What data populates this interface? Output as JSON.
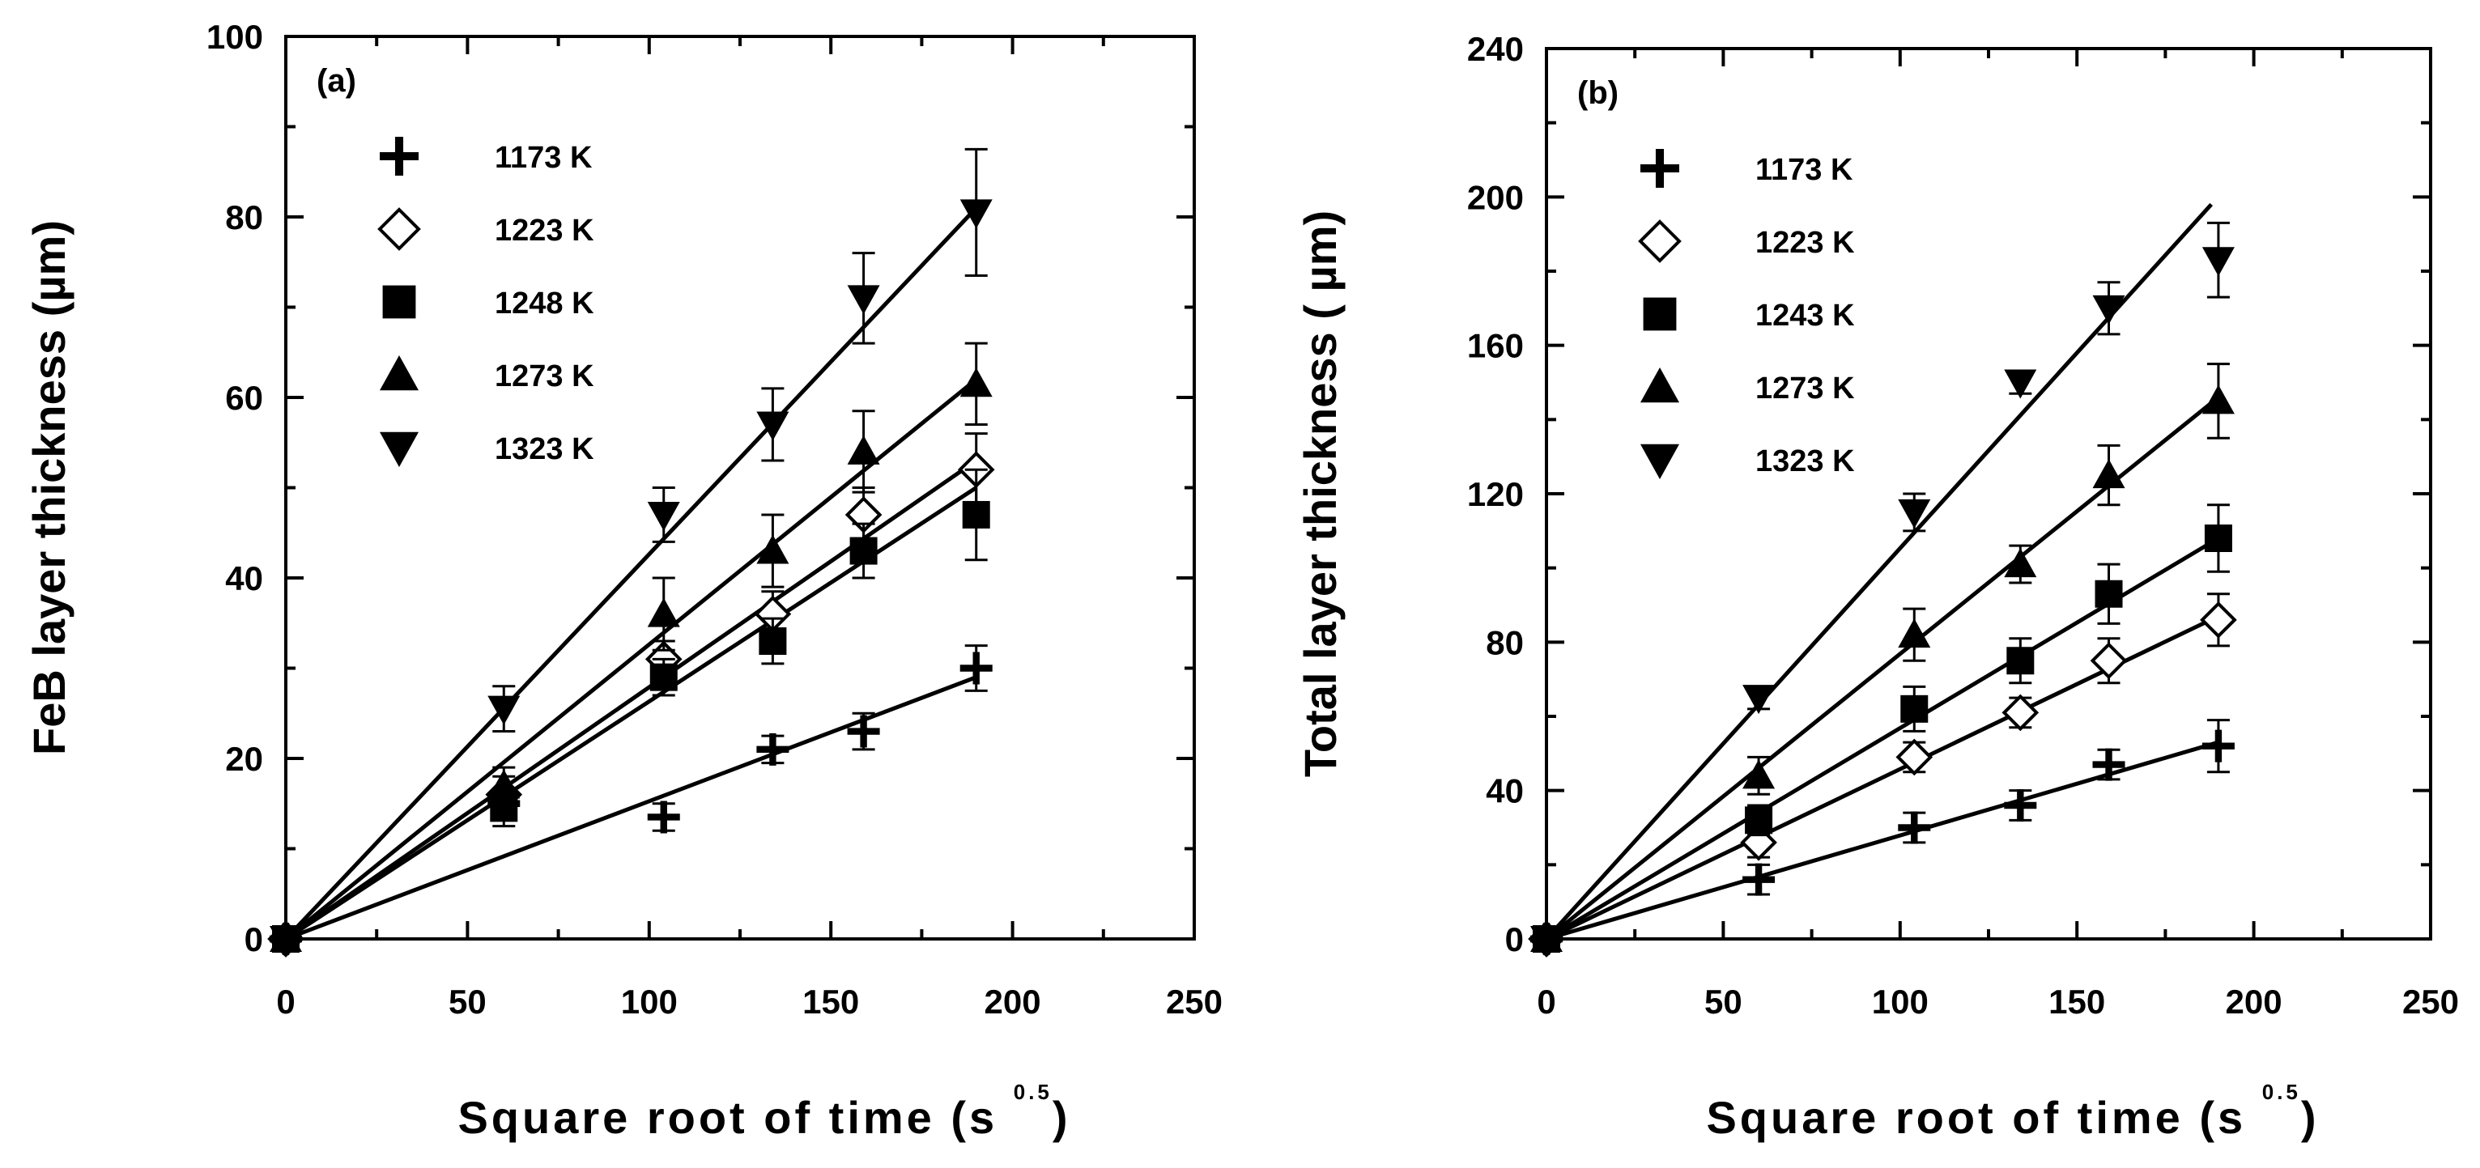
{
  "chart_data": [
    {
      "type": "scatter",
      "panel_label": "(a)",
      "title": "",
      "xlabel": "Square root of time (s",
      "xlabel_sup": "0.5",
      "xlabel_close": ")",
      "ylabel": "FeB layer thickness (µm)",
      "xlim": [
        0,
        250
      ],
      "ylim": [
        0,
        100
      ],
      "xticks": [
        0,
        50,
        100,
        150,
        200,
        250
      ],
      "yticks": [
        0,
        20,
        40,
        60,
        80,
        100
      ],
      "legend_position": "top-left",
      "series": [
        {
          "name": "1173 K",
          "marker": "plus",
          "x": [
            0,
            60,
            104,
            134,
            159,
            190
          ],
          "y": [
            0,
            15,
            13.5,
            21,
            23,
            30
          ],
          "err": [
            0,
            1.5,
            1.5,
            1.5,
            2,
            2.5
          ],
          "fit_end": [
            190,
            29
          ]
        },
        {
          "name": "1223 K",
          "marker": "diamond-open",
          "x": [
            0,
            60,
            104,
            134,
            159,
            190
          ],
          "y": [
            0,
            16,
            31,
            36,
            47,
            52
          ],
          "err": [
            0,
            2,
            2,
            2.5,
            3,
            4
          ],
          "fit_end": [
            190,
            53
          ]
        },
        {
          "name": "1248 K",
          "marker": "square",
          "x": [
            0,
            60,
            104,
            134,
            159,
            190
          ],
          "y": [
            0,
            14.5,
            29,
            33,
            43,
            47
          ],
          "err": [
            0,
            2,
            2,
            2.5,
            3,
            5
          ],
          "fit_end": [
            190,
            50
          ]
        },
        {
          "name": "1273 K",
          "marker": "triangle-up",
          "x": [
            0,
            60,
            104,
            134,
            159,
            190
          ],
          "y": [
            0,
            17,
            36,
            43,
            54,
            61.5
          ],
          "err": [
            0,
            2,
            4,
            4,
            4.5,
            4.5
          ],
          "fit_end": [
            190,
            62
          ]
        },
        {
          "name": "1323 K",
          "marker": "triangle-down",
          "x": [
            0,
            60,
            104,
            134,
            159,
            190
          ],
          "y": [
            0,
            25.5,
            47,
            57,
            71,
            80.5
          ],
          "err": [
            0,
            2.5,
            3,
            4,
            5,
            7
          ],
          "fit_end": [
            190,
            81
          ]
        }
      ]
    },
    {
      "type": "scatter",
      "panel_label": "(b)",
      "title": "",
      "xlabel": "Square root of time (s",
      "xlabel_sup": "0.5",
      "xlabel_close": ")",
      "ylabel": "Total layer thickness ( µm)",
      "xlim": [
        0,
        250
      ],
      "ylim": [
        0,
        240
      ],
      "xticks": [
        0,
        50,
        100,
        150,
        200,
        250
      ],
      "yticks": [
        0,
        40,
        80,
        120,
        160,
        200,
        240
      ],
      "legend_position": "top-left",
      "series": [
        {
          "name": "1173 K",
          "marker": "plus",
          "x": [
            0,
            60,
            104,
            134,
            159,
            190
          ],
          "y": [
            0,
            16,
            30,
            36,
            47,
            52
          ],
          "err": [
            0,
            4,
            4,
            4,
            4,
            7
          ],
          "fit_end": [
            190,
            53
          ]
        },
        {
          "name": "1223 K",
          "marker": "diamond-open",
          "x": [
            0,
            60,
            104,
            134,
            159,
            190
          ],
          "y": [
            0,
            26,
            49,
            61,
            75,
            86
          ],
          "err": [
            0,
            4,
            4,
            4,
            6,
            7
          ],
          "fit_end": [
            190,
            87
          ]
        },
        {
          "name": "1243 K",
          "marker": "square",
          "x": [
            0,
            60,
            104,
            134,
            159,
            190
          ],
          "y": [
            0,
            32,
            62,
            75,
            93,
            108
          ],
          "err": [
            0,
            4,
            6,
            6,
            8,
            9
          ],
          "fit_end": [
            190,
            108
          ]
        },
        {
          "name": "1273 K",
          "marker": "triangle-up",
          "x": [
            0,
            60,
            104,
            134,
            159,
            190
          ],
          "y": [
            0,
            44,
            82,
            101,
            125,
            145
          ],
          "err": [
            0,
            5,
            7,
            5,
            8,
            10
          ],
          "fit_end": [
            190,
            146
          ]
        },
        {
          "name": "1323 K",
          "marker": "triangle-down",
          "x": [
            0,
            60,
            104,
            134,
            159,
            190
          ],
          "y": [
            0,
            65,
            115,
            150,
            170,
            183
          ],
          "err": [
            0,
            3,
            5,
            3,
            7,
            10
          ],
          "fit_end": [
            188,
            198
          ]
        }
      ]
    }
  ]
}
